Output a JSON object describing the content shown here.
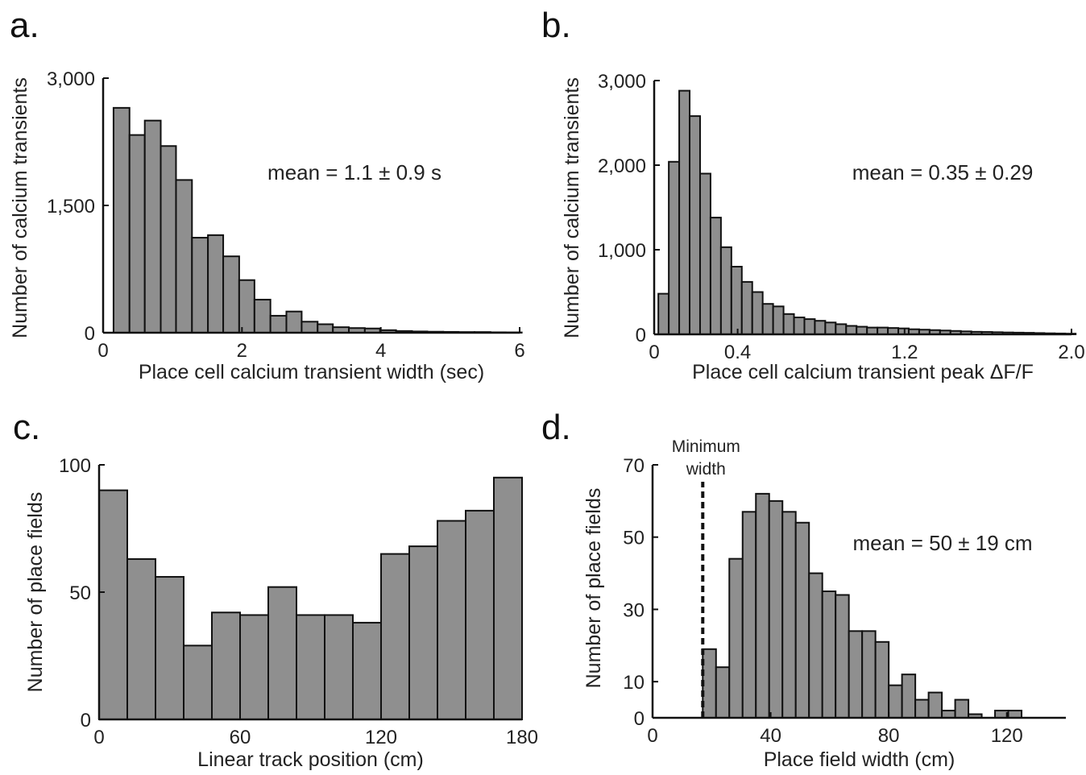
{
  "chart_data": [
    {
      "panel": "a.",
      "type": "bar",
      "xlabel": "Place cell calcium transient width (sec)",
      "ylabel": "Number of calcium transients",
      "annotation": "mean = 1.1 ± 0.9 s",
      "xlim": [
        0,
        6
      ],
      "ylim": [
        0,
        3000
      ],
      "xticks": [
        0,
        2,
        4,
        6
      ],
      "xtick_labels": [
        "0",
        "2",
        "4",
        "6"
      ],
      "yticks": [
        0,
        1500,
        3000
      ],
      "ytick_labels": [
        "0",
        "1,500",
        "3,000"
      ],
      "bin_edges": [
        0.15,
        0.38,
        0.6,
        0.83,
        1.05,
        1.28,
        1.51,
        1.73,
        1.96,
        2.18,
        2.41,
        2.64,
        2.86,
        3.09,
        3.31,
        3.54,
        3.77,
        3.99,
        4.22,
        4.45,
        4.67,
        4.9,
        5.12,
        5.35,
        5.58,
        5.8,
        6.03
      ],
      "values": [
        2650,
        2330,
        2500,
        2200,
        1800,
        1120,
        1150,
        900,
        620,
        390,
        200,
        250,
        130,
        100,
        65,
        55,
        50,
        30,
        20,
        15,
        12,
        10,
        8,
        8,
        5,
        4
      ]
    },
    {
      "panel": "b.",
      "type": "bar",
      "xlabel": "Place cell calcium transient peak ΔF/F",
      "ylabel": "Number of calcium transients",
      "annotation": "mean = 0.35 ± 0.29",
      "xlim": [
        0,
        2.0
      ],
      "ylim": [
        0,
        3000
      ],
      "xticks": [
        0,
        0.4,
        1.2,
        2.0
      ],
      "xtick_labels": [
        "0",
        "0.4",
        "1.2",
        "2.0"
      ],
      "yticks": [
        0,
        1000,
        2000,
        3000
      ],
      "ytick_labels": [
        "0",
        "1,000",
        "2,000",
        "3,000"
      ],
      "bin_edges": [
        0.02,
        0.07,
        0.12,
        0.17,
        0.22,
        0.27,
        0.32,
        0.37,
        0.42,
        0.47,
        0.52,
        0.57,
        0.62,
        0.67,
        0.72,
        0.77,
        0.82,
        0.87,
        0.92,
        0.97,
        1.02,
        1.07,
        1.12,
        1.17,
        1.22,
        1.27,
        1.32,
        1.37,
        1.42,
        1.47,
        1.52,
        1.57,
        1.62,
        1.67,
        1.72,
        1.77,
        1.82,
        1.87,
        1.92,
        1.97,
        2.02
      ],
      "values": [
        480,
        2040,
        2880,
        2580,
        1900,
        1380,
        1030,
        800,
        620,
        500,
        360,
        330,
        240,
        200,
        180,
        160,
        140,
        120,
        100,
        90,
        80,
        80,
        75,
        70,
        60,
        55,
        50,
        45,
        40,
        35,
        30,
        28,
        25,
        22,
        20,
        18,
        15,
        12,
        10,
        8
      ]
    },
    {
      "panel": "c.",
      "type": "bar",
      "xlabel": "Linear track position (cm)",
      "ylabel": "Number of place fields",
      "xlim": [
        0,
        180
      ],
      "ylim": [
        0,
        100
      ],
      "xticks": [
        0,
        60,
        120,
        180
      ],
      "xtick_labels": [
        "0",
        "60",
        "120",
        "180"
      ],
      "yticks": [
        0,
        50,
        100
      ],
      "ytick_labels": [
        "0",
        "50",
        "100"
      ],
      "bin_edges": [
        0,
        12,
        24,
        36,
        48,
        60,
        72,
        84,
        96,
        108,
        120,
        132,
        144,
        156,
        168,
        180
      ],
      "values": [
        90,
        63,
        56,
        29,
        42,
        41,
        52,
        41,
        41,
        38,
        65,
        68,
        78,
        82,
        95
      ]
    },
    {
      "panel": "d.",
      "type": "bar",
      "xlabel": "Place field width (cm)",
      "ylabel": "Number of place fields",
      "annotation": "mean = 50 ± 19 cm",
      "marker_label": [
        "Minimum",
        "width"
      ],
      "marker_x": 17,
      "xlim": [
        0,
        140
      ],
      "ylim": [
        0,
        70
      ],
      "xticks": [
        0,
        40,
        80,
        120
      ],
      "xtick_labels": [
        "0",
        "40",
        "80",
        "120"
      ],
      "yticks": [
        0,
        10,
        30,
        50,
        70
      ],
      "ytick_labels": [
        "0",
        "10",
        "30",
        "50",
        "70"
      ],
      "bin_edges": [
        17,
        21.5,
        26,
        30.5,
        35,
        39.5,
        44,
        48.5,
        53,
        57.5,
        62,
        66.5,
        71,
        75.5,
        80,
        84.5,
        89,
        93.5,
        98,
        102.5,
        107,
        111.5,
        116,
        120.5,
        125
      ],
      "values": [
        19,
        14,
        44,
        57,
        62,
        60,
        57,
        54,
        40,
        35,
        34,
        24,
        24,
        21,
        9,
        12,
        5,
        7,
        2,
        5,
        1,
        0,
        2,
        2
      ]
    }
  ]
}
